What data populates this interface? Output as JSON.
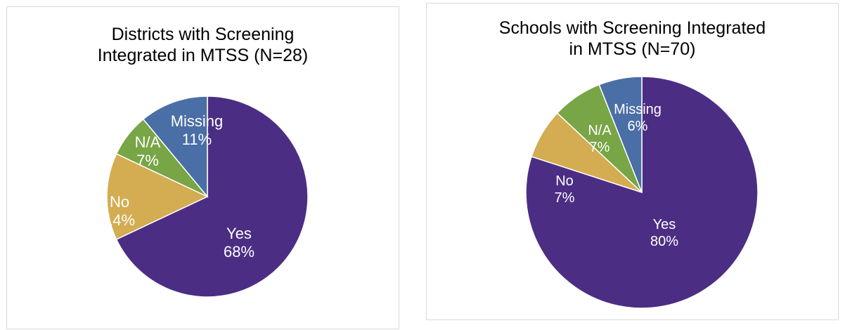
{
  "colors": {
    "yes": "#4b2e83",
    "no": "#d4ac51",
    "na": "#78a545",
    "missing": "#4a6ea6"
  },
  "chart_data": [
    {
      "type": "pie",
      "title_lines": [
        "Districts with Screening",
        "Integrated in MTSS (N=28)"
      ],
      "slices": [
        {
          "name": "Yes",
          "value": 68,
          "label": "68%",
          "color": "#4b2e83"
        },
        {
          "name": "No",
          "value": 14,
          "label": "14%",
          "color": "#d4ac51"
        },
        {
          "name": "N/A",
          "value": 7,
          "label": "7%",
          "color": "#78a545"
        },
        {
          "name": "Missing",
          "value": 11,
          "label": "11%",
          "color": "#4a6ea6"
        }
      ]
    },
    {
      "type": "pie",
      "title_lines": [
        "Schools with Screening Integrated",
        "in MTSS (N=70)"
      ],
      "slices": [
        {
          "name": "Yes",
          "value": 80,
          "label": "80%",
          "color": "#4b2e83"
        },
        {
          "name": "No",
          "value": 7,
          "label": "7%",
          "color": "#d4ac51"
        },
        {
          "name": "N/A",
          "value": 7,
          "label": "7%",
          "color": "#78a545"
        },
        {
          "name": "Missing",
          "value": 6,
          "label": "6%",
          "color": "#4a6ea6"
        }
      ]
    }
  ]
}
